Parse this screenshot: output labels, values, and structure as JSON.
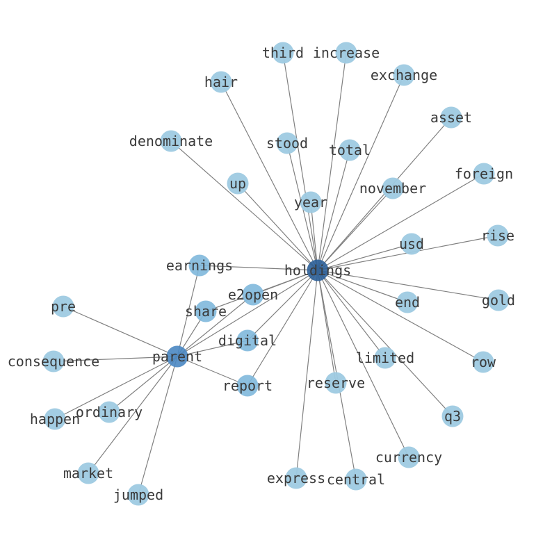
{
  "graph": {
    "edge_color": "#808080",
    "node_colors": {
      "leaf": "#9ecae1",
      "degree2": "#7fb8dc",
      "parent": "#4a87c2",
      "hub": "#2c5f98"
    },
    "nodes": [
      {
        "id": "holdings",
        "label": "holdings",
        "kind": "hub"
      },
      {
        "id": "parent",
        "label": "parent",
        "kind": "parent"
      },
      {
        "id": "third",
        "label": "third",
        "kind": "leaf"
      },
      {
        "id": "increase",
        "label": "increase",
        "kind": "leaf"
      },
      {
        "id": "hair",
        "label": "hair",
        "kind": "leaf"
      },
      {
        "id": "exchange",
        "label": "exchange",
        "kind": "leaf"
      },
      {
        "id": "asset",
        "label": "asset",
        "kind": "leaf"
      },
      {
        "id": "denominate",
        "label": "denominate",
        "kind": "leaf"
      },
      {
        "id": "stood",
        "label": "stood",
        "kind": "leaf"
      },
      {
        "id": "total",
        "label": "total",
        "kind": "leaf"
      },
      {
        "id": "foreign",
        "label": "foreign",
        "kind": "leaf"
      },
      {
        "id": "up",
        "label": "up",
        "kind": "leaf"
      },
      {
        "id": "november",
        "label": "november",
        "kind": "leaf"
      },
      {
        "id": "year",
        "label": "year",
        "kind": "leaf"
      },
      {
        "id": "rise",
        "label": "rise",
        "kind": "leaf"
      },
      {
        "id": "usd",
        "label": "usd",
        "kind": "leaf"
      },
      {
        "id": "earnings",
        "label": "earnings",
        "kind": "degree2"
      },
      {
        "id": "e2open",
        "label": "e2open",
        "kind": "degree2"
      },
      {
        "id": "gold",
        "label": "gold",
        "kind": "leaf"
      },
      {
        "id": "end",
        "label": "end",
        "kind": "leaf"
      },
      {
        "id": "pre",
        "label": "pre",
        "kind": "leaf"
      },
      {
        "id": "share",
        "label": "share",
        "kind": "degree2"
      },
      {
        "id": "digital",
        "label": "digital",
        "kind": "degree2"
      },
      {
        "id": "limited",
        "label": "limited",
        "kind": "leaf"
      },
      {
        "id": "consequence",
        "label": "consequence",
        "kind": "leaf"
      },
      {
        "id": "row",
        "label": "row",
        "kind": "leaf"
      },
      {
        "id": "reserve",
        "label": "reserve",
        "kind": "leaf"
      },
      {
        "id": "report",
        "label": "report",
        "kind": "degree2"
      },
      {
        "id": "ordinary",
        "label": "ordinary",
        "kind": "leaf"
      },
      {
        "id": "happen",
        "label": "happen",
        "kind": "leaf"
      },
      {
        "id": "q3",
        "label": "q3",
        "kind": "leaf"
      },
      {
        "id": "currency",
        "label": "currency",
        "kind": "leaf"
      },
      {
        "id": "market",
        "label": "market",
        "kind": "leaf"
      },
      {
        "id": "express",
        "label": "express",
        "kind": "leaf"
      },
      {
        "id": "central",
        "label": "central",
        "kind": "leaf"
      },
      {
        "id": "jumped",
        "label": "jumped",
        "kind": "leaf"
      }
    ],
    "edges": [
      [
        "holdings",
        "third"
      ],
      [
        "holdings",
        "increase"
      ],
      [
        "holdings",
        "hair"
      ],
      [
        "holdings",
        "exchange"
      ],
      [
        "holdings",
        "asset"
      ],
      [
        "holdings",
        "denominate"
      ],
      [
        "holdings",
        "stood"
      ],
      [
        "holdings",
        "total"
      ],
      [
        "holdings",
        "foreign"
      ],
      [
        "holdings",
        "up"
      ],
      [
        "holdings",
        "november"
      ],
      [
        "holdings",
        "year"
      ],
      [
        "holdings",
        "rise"
      ],
      [
        "holdings",
        "usd"
      ],
      [
        "holdings",
        "earnings"
      ],
      [
        "holdings",
        "e2open"
      ],
      [
        "holdings",
        "gold"
      ],
      [
        "holdings",
        "end"
      ],
      [
        "holdings",
        "share"
      ],
      [
        "holdings",
        "digital"
      ],
      [
        "holdings",
        "limited"
      ],
      [
        "holdings",
        "row"
      ],
      [
        "holdings",
        "reserve"
      ],
      [
        "holdings",
        "report"
      ],
      [
        "holdings",
        "q3"
      ],
      [
        "holdings",
        "currency"
      ],
      [
        "holdings",
        "express"
      ],
      [
        "holdings",
        "central"
      ],
      [
        "holdings",
        "parent"
      ],
      [
        "parent",
        "pre"
      ],
      [
        "parent",
        "consequence"
      ],
      [
        "parent",
        "happen"
      ],
      [
        "parent",
        "ordinary"
      ],
      [
        "parent",
        "market"
      ],
      [
        "parent",
        "jumped"
      ],
      [
        "parent",
        "earnings"
      ],
      [
        "parent",
        "share"
      ],
      [
        "parent",
        "e2open"
      ],
      [
        "parent",
        "digital"
      ],
      [
        "parent",
        "report"
      ]
    ]
  }
}
